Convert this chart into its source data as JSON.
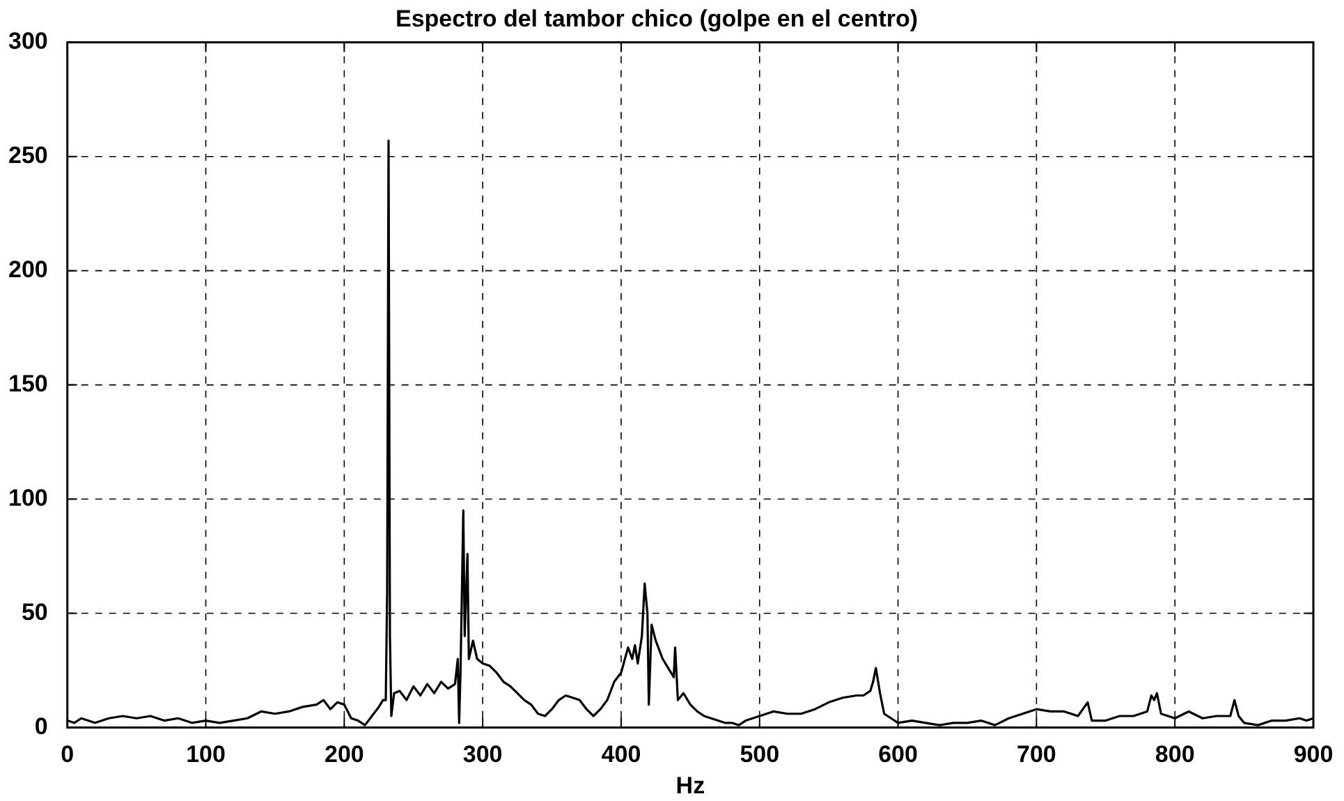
{
  "chart_data": {
    "type": "line",
    "title": "Espectro del tambor chico (golpe en el centro)",
    "xlabel": "Hz",
    "x": [
      0,
      5,
      10,
      20,
      30,
      40,
      50,
      60,
      70,
      80,
      90,
      100,
      110,
      120,
      130,
      140,
      150,
      160,
      170,
      180,
      185,
      190,
      195,
      200,
      205,
      210,
      215,
      220,
      225,
      228,
      230,
      231,
      232,
      233,
      234,
      236,
      240,
      245,
      250,
      255,
      260,
      265,
      270,
      275,
      280,
      282,
      283,
      284,
      286,
      287,
      289,
      290,
      293,
      296,
      300,
      305,
      310,
      315,
      320,
      325,
      330,
      335,
      340,
      345,
      350,
      355,
      360,
      365,
      370,
      375,
      380,
      385,
      390,
      395,
      400,
      405,
      408,
      410,
      412,
      415,
      417,
      419,
      420,
      422,
      425,
      430,
      435,
      438,
      439,
      441,
      445,
      450,
      455,
      460,
      465,
      470,
      475,
      480,
      485,
      490,
      495,
      500,
      510,
      520,
      530,
      540,
      550,
      560,
      570,
      575,
      580,
      582,
      584,
      587,
      590,
      595,
      600,
      610,
      620,
      630,
      640,
      650,
      660,
      670,
      680,
      690,
      700,
      710,
      720,
      730,
      737,
      740,
      750,
      760,
      770,
      780,
      783,
      785,
      787,
      790,
      800,
      810,
      820,
      830,
      840,
      843,
      846,
      850,
      860,
      870,
      880,
      890,
      895,
      900
    ],
    "series": [
      {
        "color": "#000000",
        "values": [
          3,
          2,
          4,
          2,
          4,
          5,
          4,
          5,
          3,
          4,
          2,
          3,
          2,
          3,
          4,
          7,
          6,
          7,
          9,
          10,
          12,
          8,
          11,
          10,
          4,
          3,
          1,
          5,
          9,
          12,
          12,
          60,
          257,
          40,
          5,
          15,
          16,
          12,
          18,
          14,
          19,
          15,
          20,
          17,
          19,
          30,
          2,
          25,
          95,
          40,
          76,
          30,
          38,
          30,
          28,
          27,
          24,
          20,
          18,
          15,
          12,
          10,
          6,
          5,
          8,
          12,
          14,
          13,
          12,
          8,
          5,
          8,
          12,
          20,
          24,
          35,
          30,
          36,
          28,
          40,
          63,
          50,
          10,
          45,
          38,
          30,
          25,
          22,
          35,
          12,
          15,
          10,
          7,
          5,
          4,
          3,
          2,
          2,
          1,
          3,
          4,
          5,
          7,
          6,
          6,
          8,
          11,
          13,
          14,
          14,
          16,
          20,
          26,
          15,
          6,
          4,
          2,
          3,
          2,
          1,
          2,
          2,
          3,
          1,
          4,
          6,
          8,
          7,
          7,
          5,
          11,
          3,
          3,
          5,
          5,
          7,
          14,
          12,
          15,
          6,
          4,
          7,
          4,
          5,
          5,
          12,
          5,
          2,
          1,
          3,
          3,
          4,
          3,
          4
        ]
      }
    ],
    "xlim": [
      0,
      900
    ],
    "xticks": [
      0,
      100,
      200,
      300,
      400,
      500,
      600,
      700,
      800,
      900
    ],
    "ylim": [
      0,
      300
    ],
    "yticks": [
      0,
      50,
      100,
      150,
      200,
      250,
      300
    ],
    "grid": true,
    "line_style": "solid",
    "marker": "none"
  }
}
